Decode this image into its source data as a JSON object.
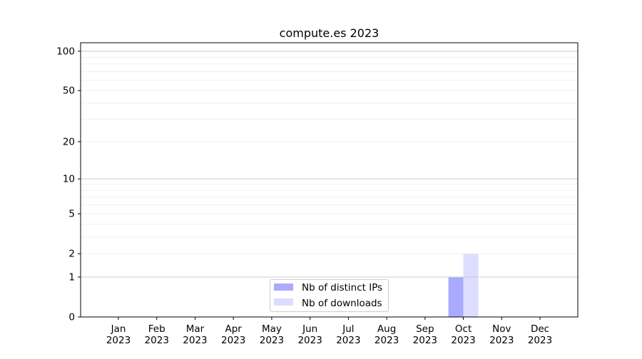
{
  "chart_data": {
    "type": "bar",
    "title": "compute.es 2023",
    "xlabel": "",
    "ylabel": "",
    "y_scale": "symlog (log of 1+y)",
    "ylim": [
      0,
      116
    ],
    "y_ticks": [
      0,
      1,
      2,
      5,
      10,
      20,
      50,
      100
    ],
    "y_minor_grid": [
      3,
      4,
      6,
      7,
      8,
      9,
      30,
      40,
      60,
      70,
      80,
      90
    ],
    "grid": true,
    "legend_position": "bottom-center",
    "categories": [
      [
        "Jan",
        "2023"
      ],
      [
        "Feb",
        "2023"
      ],
      [
        "Mar",
        "2023"
      ],
      [
        "Apr",
        "2023"
      ],
      [
        "May",
        "2023"
      ],
      [
        "Jun",
        "2023"
      ],
      [
        "Jul",
        "2023"
      ],
      [
        "Aug",
        "2023"
      ],
      [
        "Sep",
        "2023"
      ],
      [
        "Oct",
        "2023"
      ],
      [
        "Nov",
        "2023"
      ],
      [
        "Dec",
        "2023"
      ]
    ],
    "series": [
      {
        "name": "Nb of distinct IPs",
        "color": "#aaaaff",
        "values": [
          0,
          0,
          0,
          0,
          0,
          0,
          0,
          0,
          0,
          1,
          0,
          0
        ]
      },
      {
        "name": "Nb of downloads",
        "color": "#ddddff",
        "values": [
          0,
          0,
          0,
          0,
          0,
          0,
          0,
          0,
          0,
          2,
          0,
          0
        ]
      }
    ]
  }
}
